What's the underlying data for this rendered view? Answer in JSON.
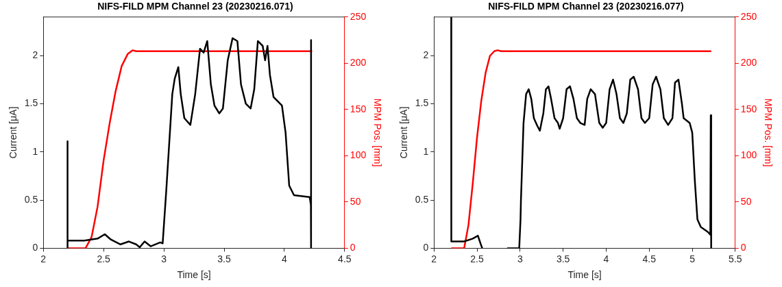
{
  "chart_data": [
    {
      "type": "line",
      "title": "NIFS-FILD MPM Channel 23 (20230216.071)",
      "xlabel": "Time [s]",
      "ylabel": "Current [μA]",
      "y2label": "MPM Pos. [mm]",
      "xlim": [
        2,
        4.5
      ],
      "xticks": [
        2,
        2.5,
        3,
        3.5,
        4,
        4.5
      ],
      "ylim": [
        0,
        2.4
      ],
      "yticks": [
        0,
        0.5,
        1,
        1.5,
        2
      ],
      "y2lim": [
        0,
        250
      ],
      "y2ticks": [
        0,
        50,
        100,
        150,
        200,
        250
      ],
      "series": [
        {
          "color": "#000000",
          "x": [
            2.2,
            2.2005,
            2.201,
            2.34,
            2.45,
            2.51,
            2.56,
            2.64,
            2.71,
            2.77,
            2.8,
            2.84,
            2.89,
            2.97,
            2.99,
            3.02,
            3.07,
            3.09,
            3.12,
            3.14,
            3.17,
            3.22,
            3.26,
            3.3,
            3.33,
            3.36,
            3.39,
            3.42,
            3.46,
            3.49,
            3.53,
            3.57,
            3.61,
            3.64,
            3.68,
            3.72,
            3.75,
            3.78,
            3.82,
            3.84,
            3.86,
            3.88,
            3.91,
            3.98,
            4.01,
            4.04,
            4.08,
            4.21,
            4.22,
            4.221,
            4.222
          ],
          "values": [
            0,
            1.11,
            0.08,
            0.08,
            0.1,
            0.145,
            0.09,
            0.04,
            0.07,
            0.04,
            0.01,
            0.07,
            0.02,
            0.06,
            0.05,
            0.6,
            1.6,
            1.76,
            1.88,
            1.6,
            1.35,
            1.28,
            1.6,
            2.07,
            2.03,
            2.15,
            1.7,
            1.48,
            1.4,
            1.45,
            1.95,
            2.18,
            2.15,
            1.7,
            1.5,
            1.45,
            1.65,
            2.15,
            2.1,
            1.95,
            2.1,
            1.8,
            1.57,
            1.48,
            1.2,
            0.65,
            0.55,
            0.53,
            0.45,
            2.16,
            0
          ]
        },
        {
          "color": "#ff0000",
          "axis": "y2",
          "x": [
            2.2,
            2.35,
            2.4,
            2.45,
            2.5,
            2.55,
            2.6,
            2.65,
            2.7,
            2.74,
            2.77,
            4.23
          ],
          "values": [
            0,
            0,
            12,
            45,
            95,
            135,
            170,
            197,
            210,
            214,
            213,
            213
          ]
        }
      ]
    },
    {
      "type": "line",
      "title": "NIFS-FILD MPM Channel 23 (20230216.077)",
      "xlabel": "Time [s]",
      "ylabel": "Current [μA]",
      "y2label": "MPM Pos. [mm]",
      "xlim": [
        2,
        5.5
      ],
      "xticks": [
        2,
        2.5,
        3,
        3.5,
        4,
        4.5,
        5,
        5.5
      ],
      "ylim": [
        0,
        2.4
      ],
      "yticks": [
        0,
        0.5,
        1,
        1.5,
        2
      ],
      "y2lim": [
        0,
        250
      ],
      "y2ticks": [
        0,
        50,
        100,
        150,
        200,
        250
      ],
      "series": [
        {
          "color": "#000000",
          "x": [
            2.2,
            2.201,
            2.35,
            2.45,
            2.51,
            2.54,
            2.56,
            2.57,
            2.85,
            2.99,
            3.005,
            3.01,
            3.04,
            3.07,
            3.1,
            3.13,
            3.16,
            3.2,
            3.23,
            3.27,
            3.3,
            3.33,
            3.36,
            3.4,
            3.44,
            3.46,
            3.5,
            3.54,
            3.58,
            3.62,
            3.66,
            3.7,
            3.75,
            3.78,
            3.82,
            3.87,
            3.92,
            3.96,
            4.0,
            4.04,
            4.08,
            4.12,
            4.16,
            4.2,
            4.24,
            4.28,
            4.32,
            4.37,
            4.41,
            4.45,
            4.5,
            4.54,
            4.58,
            4.63,
            4.67,
            4.72,
            4.77,
            4.8,
            4.84,
            4.88,
            4.9,
            4.97,
            5.0,
            5.03,
            5.06,
            5.1,
            5.18,
            5.21,
            5.215,
            5.22
          ],
          "values": [
            2.4,
            0.07,
            0.07,
            0.1,
            0.13,
            0.05,
            0,
            null,
            0,
            0,
            0.3,
            0.5,
            1.3,
            1.6,
            1.65,
            1.55,
            1.35,
            1.27,
            1.22,
            1.4,
            1.65,
            1.68,
            1.55,
            1.35,
            1.3,
            1.24,
            1.35,
            1.65,
            1.68,
            1.55,
            1.35,
            1.3,
            1.28,
            1.55,
            1.65,
            1.6,
            1.3,
            1.25,
            1.3,
            1.65,
            1.75,
            1.6,
            1.35,
            1.3,
            1.4,
            1.75,
            1.78,
            1.65,
            1.35,
            1.3,
            1.35,
            1.7,
            1.78,
            1.65,
            1.35,
            1.28,
            1.35,
            1.72,
            1.75,
            1.5,
            1.35,
            1.3,
            1.2,
            0.7,
            0.3,
            0.22,
            0.17,
            0.14,
            1.38,
            0
          ]
        },
        {
          "color": "#ff0000",
          "axis": "y2",
          "x": [
            2.2,
            2.35,
            2.4,
            2.45,
            2.5,
            2.55,
            2.6,
            2.65,
            2.7,
            2.74,
            2.78,
            5.22
          ],
          "values": [
            0,
            0,
            25,
            70,
            120,
            160,
            190,
            208,
            213,
            214,
            213,
            213
          ]
        }
      ]
    }
  ]
}
